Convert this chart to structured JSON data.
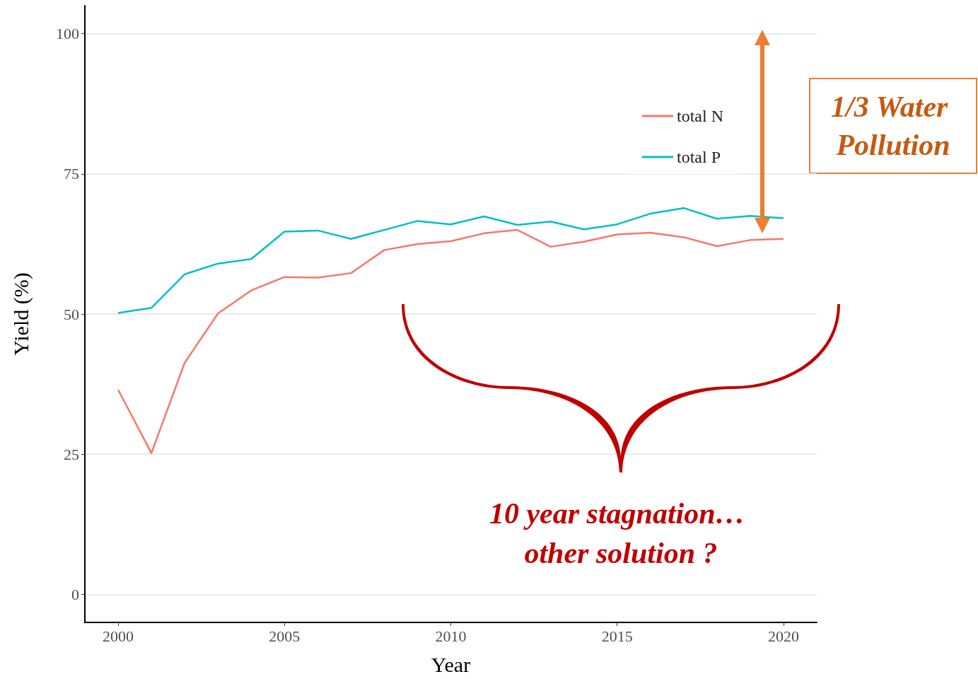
{
  "chart_data": {
    "type": "line",
    "xlabel": "Year",
    "ylabel": "Yield (%)",
    "x": [
      2000,
      2001,
      2002,
      2003,
      2004,
      2005,
      2006,
      2007,
      2008,
      2009,
      2010,
      2011,
      2012,
      2013,
      2014,
      2015,
      2016,
      2017,
      2018,
      2019,
      2020
    ],
    "series": [
      {
        "name": "total N",
        "color": "#f8766d",
        "values": [
          36.5,
          25.2,
          41.3,
          50.1,
          54.2,
          56.6,
          56.5,
          57.3,
          61.4,
          62.5,
          63.0,
          64.4,
          65.0,
          62.0,
          62.9,
          64.2,
          64.5,
          63.7,
          62.1,
          63.2,
          63.4
        ]
      },
      {
        "name": "total P",
        "color": "#00bfc4",
        "values": [
          50.2,
          51.1,
          57.1,
          59.0,
          59.8,
          64.7,
          64.9,
          63.4,
          65.0,
          66.6,
          66.0,
          67.4,
          65.9,
          66.5,
          65.1,
          66.0,
          67.9,
          68.9,
          67.0,
          67.5,
          67.1
        ]
      }
    ],
    "xlim": [
      1999,
      2021
    ],
    "xticks": [
      2000,
      2005,
      2010,
      2015,
      2020
    ],
    "ylim": [
      -5,
      105
    ],
    "yticks": [
      0,
      25,
      50,
      75,
      100
    ],
    "grid": "y",
    "legend": "top right",
    "marker": "none",
    "line_style": "solid",
    "annotations": [
      "1/3 Water Pollution",
      "10 year stagnation… other solution ?"
    ]
  }
}
